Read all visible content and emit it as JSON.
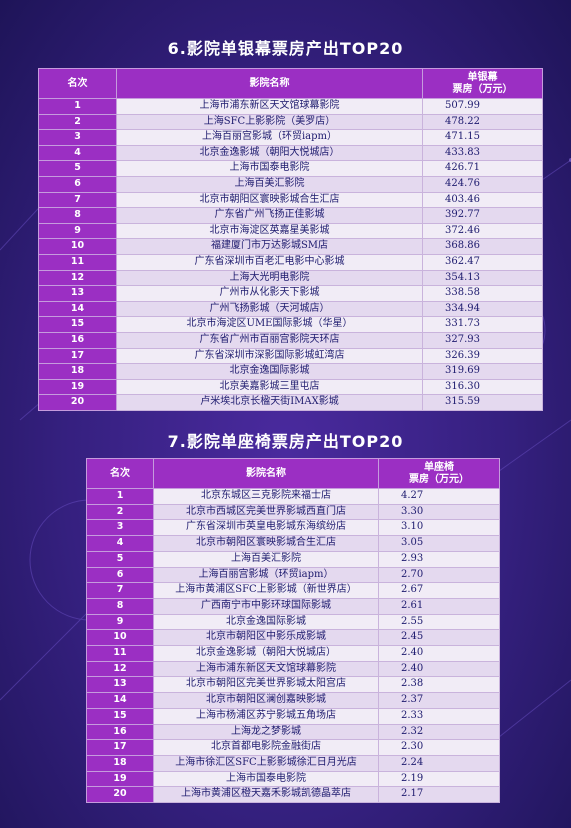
{
  "colors": {
    "background": "#3a1f86",
    "header": "#9b2fc3",
    "row": "#f1ecf6",
    "text": "#1d1a6e"
  },
  "section6": {
    "title": "6.影院单银幕票房产出TOP20",
    "headers": {
      "rank": "名次",
      "name": "影院名称",
      "value": "单银幕\n票房（万元）"
    },
    "rows": [
      {
        "rank": "1",
        "name": "上海市浦东新区天文馆球幕影院",
        "value": "507.99"
      },
      {
        "rank": "2",
        "name": "上海SFC上影影院（美罗店）",
        "value": "478.22"
      },
      {
        "rank": "3",
        "name": "上海百丽宫影城（环贸iapm）",
        "value": "471.15"
      },
      {
        "rank": "4",
        "name": "北京金逸影城（朝阳大悦城店）",
        "value": "433.83"
      },
      {
        "rank": "5",
        "name": "上海市国泰电影院",
        "value": "426.71"
      },
      {
        "rank": "6",
        "name": "上海百美汇影院",
        "value": "424.76"
      },
      {
        "rank": "7",
        "name": "北京市朝阳区寰映影城合生汇店",
        "value": "403.46"
      },
      {
        "rank": "8",
        "name": "广东省广州飞扬正佳影城",
        "value": "392.77"
      },
      {
        "rank": "9",
        "name": "北京市海淀区英嘉星美影城",
        "value": "372.46"
      },
      {
        "rank": "10",
        "name": "福建厦门市万达影城SM店",
        "value": "368.86"
      },
      {
        "rank": "11",
        "name": "广东省深圳市百老汇电影中心影城",
        "value": "362.47"
      },
      {
        "rank": "12",
        "name": "上海大光明电影院",
        "value": "354.13"
      },
      {
        "rank": "13",
        "name": "广州市从化影天下影城",
        "value": "338.58"
      },
      {
        "rank": "14",
        "name": "广州飞扬影城（天河城店）",
        "value": "334.94"
      },
      {
        "rank": "15",
        "name": "北京市海淀区UME国际影城（华星）",
        "value": "331.73"
      },
      {
        "rank": "16",
        "name": "广东省广州市百丽宫影院天环店",
        "value": "327.93"
      },
      {
        "rank": "17",
        "name": "广东省深圳市深影国际影城虹湾店",
        "value": "326.39"
      },
      {
        "rank": "18",
        "name": "北京金逸国际影城",
        "value": "319.69"
      },
      {
        "rank": "19",
        "name": "北京美嘉影城三里屯店",
        "value": "316.30"
      },
      {
        "rank": "20",
        "name": "卢米埃北京长楹天街IMAX影城",
        "value": "315.59"
      }
    ]
  },
  "section7": {
    "title": "7.影院单座椅票房产出TOP20",
    "headers": {
      "rank": "名次",
      "name": "影院名称",
      "value": "单座椅\n票房（万元）"
    },
    "rows": [
      {
        "rank": "1",
        "name": "北京东城区三克影院来福士店",
        "value": "4.27"
      },
      {
        "rank": "2",
        "name": "北京市西城区完美世界影城西直门店",
        "value": "3.30"
      },
      {
        "rank": "3",
        "name": "广东省深圳市英皇电影城东海缤纷店",
        "value": "3.10"
      },
      {
        "rank": "4",
        "name": "北京市朝阳区寰映影城合生汇店",
        "value": "3.05"
      },
      {
        "rank": "5",
        "name": "上海百美汇影院",
        "value": "2.93"
      },
      {
        "rank": "6",
        "name": "上海百丽宫影城（环贸iapm）",
        "value": "2.70"
      },
      {
        "rank": "7",
        "name": "上海市黄浦区SFC上影影城（新世界店）",
        "value": "2.67"
      },
      {
        "rank": "8",
        "name": "广西南宁市中影环球国际影城",
        "value": "2.61"
      },
      {
        "rank": "9",
        "name": "北京金逸国际影城",
        "value": "2.55"
      },
      {
        "rank": "10",
        "name": "北京市朝阳区中影乐成影城",
        "value": "2.45"
      },
      {
        "rank": "11",
        "name": "北京金逸影城（朝阳大悦城店）",
        "value": "2.40"
      },
      {
        "rank": "12",
        "name": "上海市浦东新区天文馆球幕影院",
        "value": "2.40"
      },
      {
        "rank": "13",
        "name": "北京市朝阳区完美世界影城太阳宫店",
        "value": "2.38"
      },
      {
        "rank": "14",
        "name": "北京市朝阳区澜创嘉映影城",
        "value": "2.37"
      },
      {
        "rank": "15",
        "name": "上海市杨浦区苏宁影城五角场店",
        "value": "2.33"
      },
      {
        "rank": "16",
        "name": "上海龙之梦影城",
        "value": "2.32"
      },
      {
        "rank": "17",
        "name": "北京首都电影院金融街店",
        "value": "2.30"
      },
      {
        "rank": "18",
        "name": "上海市徐汇区SFC上影影城徐汇日月光店",
        "value": "2.24"
      },
      {
        "rank": "19",
        "name": "上海市国泰电影院",
        "value": "2.19"
      },
      {
        "rank": "20",
        "name": "上海市黄浦区橙天嘉禾影城凯德晶萃店",
        "value": "2.17"
      }
    ]
  }
}
